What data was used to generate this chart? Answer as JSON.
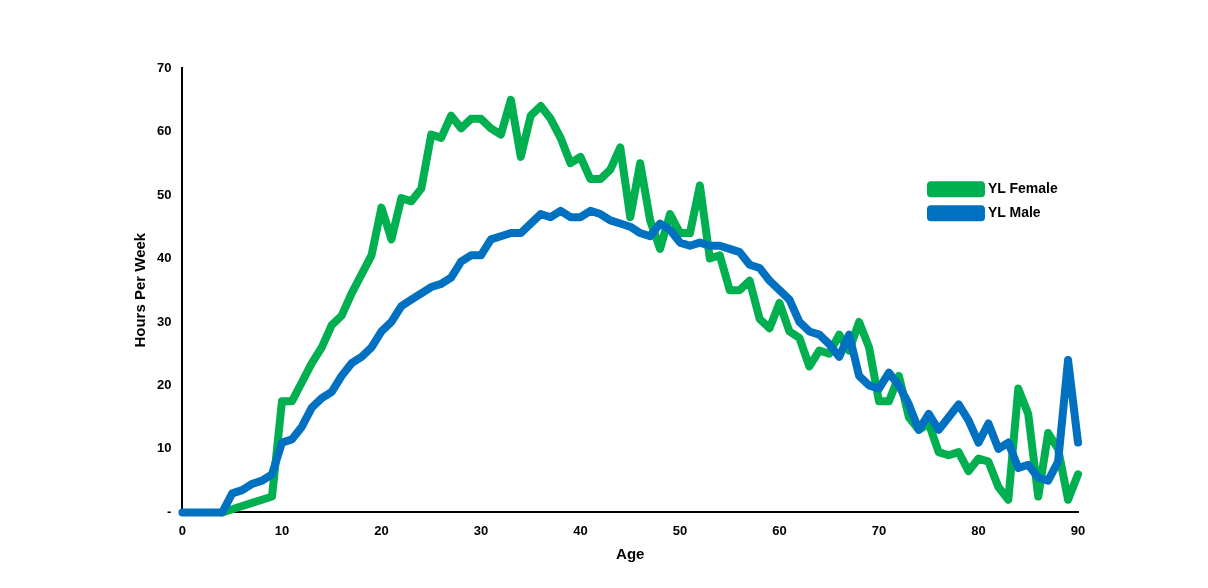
{
  "chart_data": {
    "type": "line",
    "xlabel": "Age",
    "ylabel": "Hours Per Week",
    "x": [
      0,
      1,
      2,
      3,
      4,
      5,
      6,
      7,
      8,
      9,
      10,
      11,
      12,
      13,
      14,
      15,
      16,
      17,
      18,
      19,
      20,
      21,
      22,
      23,
      24,
      25,
      26,
      27,
      28,
      29,
      30,
      31,
      32,
      33,
      34,
      35,
      36,
      37,
      38,
      39,
      40,
      41,
      42,
      43,
      44,
      45,
      46,
      47,
      48,
      49,
      50,
      51,
      52,
      53,
      54,
      55,
      56,
      57,
      58,
      59,
      60,
      61,
      62,
      63,
      64,
      65,
      66,
      67,
      68,
      69,
      70,
      71,
      72,
      73,
      74,
      75,
      76,
      77,
      78,
      79,
      80,
      81,
      82,
      83,
      84,
      85,
      86,
      87,
      88,
      89,
      90
    ],
    "series": [
      {
        "name": "YL Female",
        "color": "#00b050",
        "values": [
          null,
          null,
          null,
          null,
          0,
          0.5,
          1,
          1.5,
          2,
          2.5,
          17.5,
          17.5,
          20.5,
          23.5,
          26,
          29.5,
          31,
          34.5,
          37.5,
          40.5,
          48,
          43,
          49.5,
          49,
          51,
          59.5,
          59,
          62.5,
          60.5,
          62,
          62,
          60.5,
          59.5,
          65,
          56,
          62.5,
          64,
          62,
          59,
          55,
          56,
          52.5,
          52.5,
          54,
          57.5,
          46.5,
          55,
          46,
          41.5,
          47,
          44,
          44,
          51.5,
          40,
          40.5,
          35,
          35,
          36.5,
          30.5,
          29,
          33,
          28.5,
          27.5,
          23,
          25.5,
          25,
          28,
          25.5,
          30,
          26,
          17.5,
          17.5,
          21.5,
          15,
          13,
          14,
          9.5,
          9,
          9.5,
          6.5,
          8.5,
          8,
          4,
          2,
          19.5,
          15.5,
          2.5,
          12.5,
          10,
          2,
          6
        ]
      },
      {
        "name": "YL Male",
        "color": "#0070c0",
        "values": [
          0,
          0,
          0,
          0,
          0,
          3,
          3.5,
          4.5,
          5,
          6,
          11,
          11.5,
          13.5,
          16.5,
          18,
          19,
          21.5,
          23.5,
          24.5,
          26,
          28.5,
          30,
          32.5,
          33.5,
          34.5,
          35.5,
          36,
          37,
          39.5,
          40.5,
          40.5,
          43,
          43.5,
          44,
          44,
          45.5,
          47,
          46.5,
          47.5,
          46.5,
          46.5,
          47.5,
          47,
          46,
          45.5,
          45,
          44,
          43.5,
          45.5,
          44.5,
          42.5,
          42,
          42.5,
          42,
          42,
          41.5,
          41,
          39,
          38.5,
          36.5,
          35,
          33.5,
          30,
          28.5,
          28,
          26.5,
          24.5,
          28,
          21.5,
          20,
          19.5,
          22,
          20,
          17,
          13,
          15.5,
          13,
          15,
          17,
          14.5,
          11,
          14,
          10,
          11,
          7,
          7.5,
          5.5,
          5,
          8,
          24,
          11
        ]
      }
    ],
    "xlim": [
      0,
      90
    ],
    "xticks": [
      0,
      10,
      20,
      30,
      40,
      50,
      60,
      70,
      80,
      90
    ],
    "ylim": [
      0,
      70
    ],
    "yticks": [
      {
        "value": 0,
        "label": "-"
      },
      10,
      20,
      30,
      40,
      50,
      60,
      70
    ],
    "grid": false,
    "legend": "right",
    "marker": "none",
    "line_style": "solid"
  }
}
